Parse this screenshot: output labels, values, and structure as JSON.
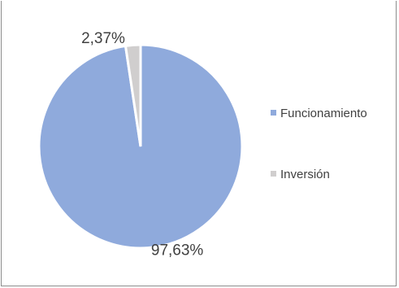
{
  "chart_data": {
    "type": "pie",
    "title": "",
    "categories": [
      "Funcionamiento",
      "Inversión"
    ],
    "values": [
      97.63,
      2.37
    ],
    "labels": [
      "97,63%",
      "2,37%"
    ],
    "colors": [
      "#8faadc",
      "#d0cece"
    ],
    "legend_position": "right"
  }
}
